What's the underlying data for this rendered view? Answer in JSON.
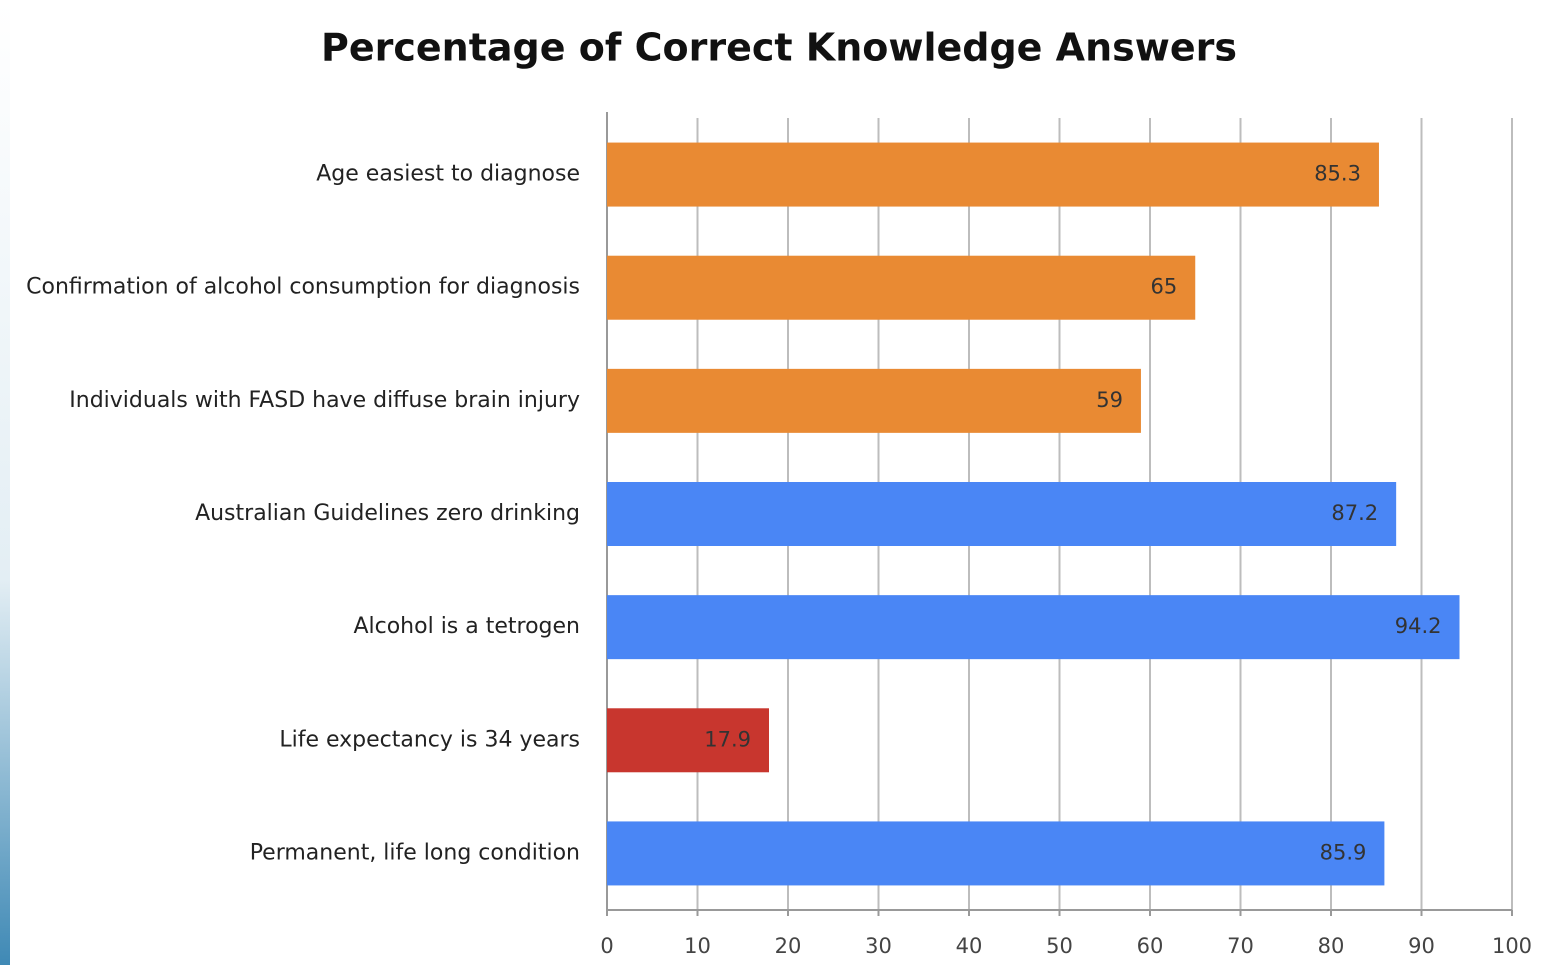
{
  "chart_data": {
    "type": "bar",
    "orientation": "horizontal",
    "title": "Percentage of Correct Knowledge Answers",
    "categories": [
      "Age easiest to diagnose",
      "Confirmation of alcohol consumption for diagnosis",
      "Individuals with FASD have diffuse brain injury",
      "Australian Guidelines zero drinking",
      "Alcohol is a tetrogen",
      "Life expectancy is 34 years",
      "Permanent, life long condition"
    ],
    "values": [
      85.3,
      65,
      59,
      87.2,
      94.2,
      17.9,
      85.9
    ],
    "colors": [
      "#e98a33",
      "#e98a33",
      "#e98a33",
      "#4a86f5",
      "#4a86f5",
      "#c8362e",
      "#4a86f5"
    ],
    "xlim": [
      0,
      100
    ],
    "xticks": [
      0,
      10,
      20,
      30,
      40,
      50,
      60,
      70,
      80,
      90,
      100
    ],
    "grid": true
  }
}
